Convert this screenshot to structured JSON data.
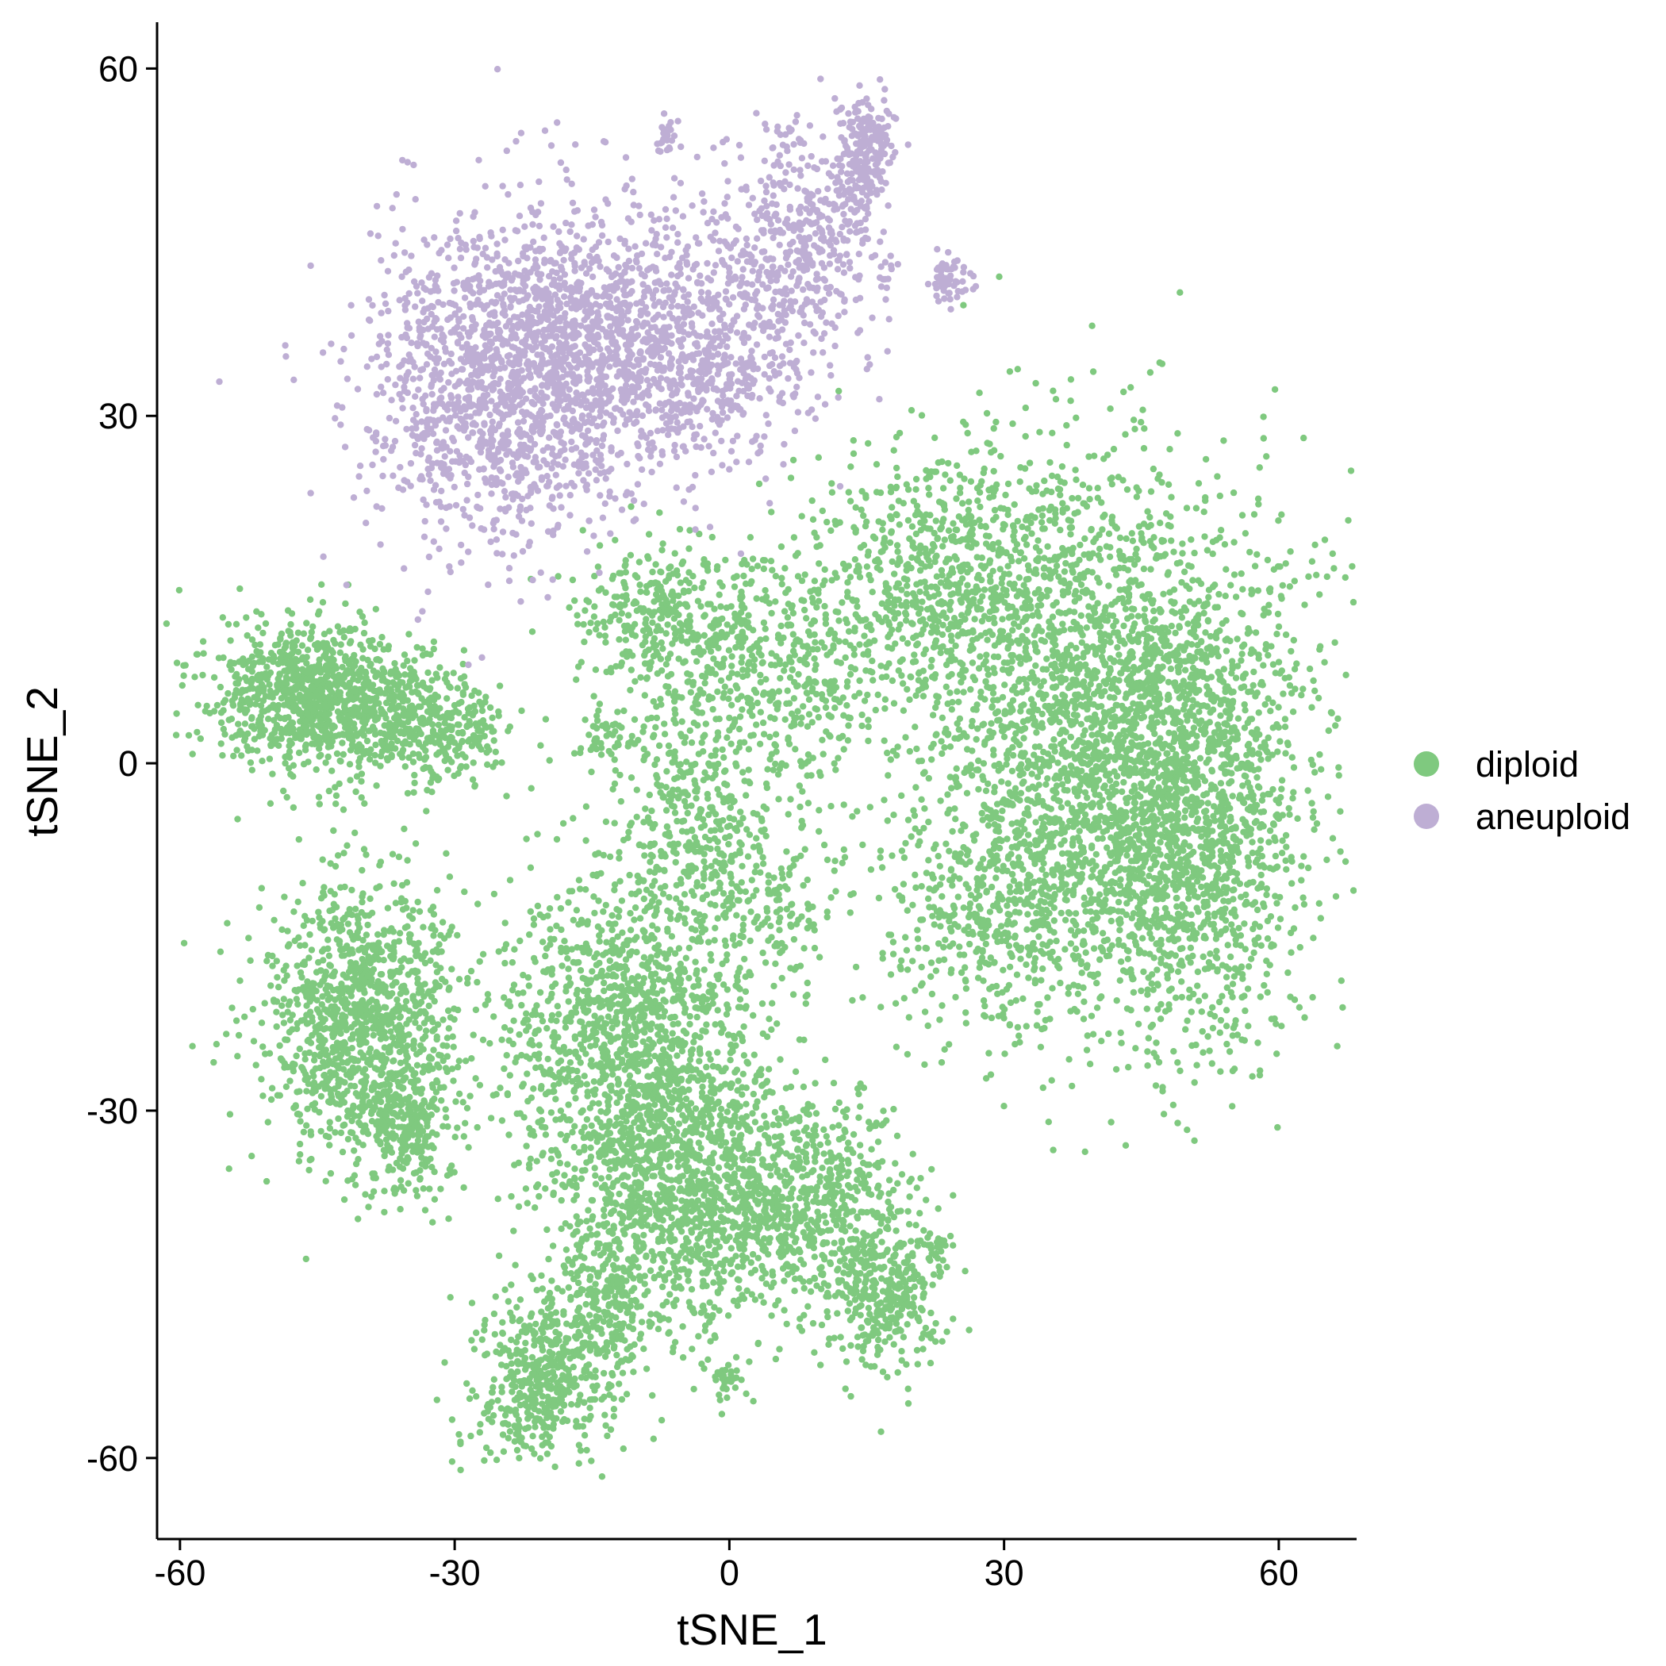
{
  "chart_data": {
    "type": "scatter",
    "title": "",
    "xlabel": "tSNE_1",
    "ylabel": "tSNE_2",
    "xlim": [
      -62.5,
      68.5
    ],
    "ylim": [
      -67,
      64
    ],
    "xticks": [
      -60,
      -30,
      0,
      30,
      60
    ],
    "yticks": [
      -60,
      -30,
      0,
      30,
      60
    ],
    "xtick_labels": [
      "-60",
      "-30",
      "0",
      "30",
      "60"
    ],
    "ytick_labels": [
      "-60",
      "-30",
      "0",
      "30",
      "60"
    ],
    "grid": false,
    "legend": {
      "position": "right",
      "entries": [
        {
          "label": "diploid",
          "color": "#7FC97F"
        },
        {
          "label": "aneuploid",
          "color": "#BEAED4"
        }
      ]
    },
    "series": [
      {
        "name": "diploid",
        "color": "#7FC97F",
        "clusters": [
          {
            "cx": 42,
            "cy": 2,
            "sx": 10.5,
            "sy": 11.5,
            "n": 2600
          },
          {
            "cx": 51,
            "cy": -6,
            "sx": 5.5,
            "sy": 9.5,
            "n": 900
          },
          {
            "cx": 24,
            "cy": 16,
            "sx": 8,
            "sy": 5.5,
            "n": 700
          },
          {
            "cx": 30,
            "cy": -12,
            "sx": 7,
            "sy": 6,
            "n": 500
          },
          {
            "cx": 6,
            "cy": 8,
            "sx": 6,
            "sy": 5,
            "n": 450
          },
          {
            "cx": -7,
            "cy": 12,
            "sx": 5,
            "sy": 3.5,
            "n": 350
          },
          {
            "cx": -3,
            "cy": -5,
            "sx": 4,
            "sy": 5,
            "n": 320
          },
          {
            "cx": 6,
            "cy": -12,
            "sx": 3,
            "sy": 4,
            "n": 120
          },
          {
            "cx": -13,
            "cy": 2,
            "sx": 2,
            "sy": 1.5,
            "n": 60
          },
          {
            "cx": -46,
            "cy": 6,
            "sx": 5,
            "sy": 3.3,
            "n": 900
          },
          {
            "cx": -35,
            "cy": 4,
            "sx": 4,
            "sy": 2.8,
            "n": 350
          },
          {
            "cx": -28,
            "cy": 2,
            "sx": 2,
            "sy": 2,
            "n": 80
          },
          {
            "cx": -40,
            "cy": -22,
            "sx": 5.2,
            "sy": 6,
            "n": 1200
          },
          {
            "cx": -35,
            "cy": -32,
            "sx": 2.5,
            "sy": 3,
            "n": 200
          },
          {
            "cx": -10,
            "cy": -24,
            "sx": 7,
            "sy": 8,
            "n": 1500
          },
          {
            "cx": -4,
            "cy": -38,
            "sx": 7,
            "sy": 5.5,
            "n": 1000
          },
          {
            "cx": 10,
            "cy": -38,
            "sx": 5,
            "sy": 4.5,
            "n": 500
          },
          {
            "cx": 17,
            "cy": -46,
            "sx": 3,
            "sy": 3,
            "n": 300
          },
          {
            "cx": -20,
            "cy": -53,
            "sx": 4,
            "sy": 3.5,
            "n": 500
          },
          {
            "cx": -13,
            "cy": -46,
            "sx": 3,
            "sy": 3,
            "n": 200
          },
          {
            "cx": 0,
            "cy": -53,
            "sx": 1,
            "sy": 1,
            "n": 30
          },
          {
            "cx": 23,
            "cy": -42,
            "sx": 0.8,
            "sy": 1,
            "n": 25
          }
        ]
      },
      {
        "name": "aneuploid",
        "color": "#BEAED4",
        "clusters": [
          {
            "cx": -25,
            "cy": 33,
            "sx": 7.5,
            "sy": 7,
            "n": 1400
          },
          {
            "cx": -14,
            "cy": 38,
            "sx": 6,
            "sy": 5.5,
            "n": 600
          },
          {
            "cx": -5,
            "cy": 34,
            "sx": 6,
            "sy": 5,
            "n": 500
          },
          {
            "cx": 5,
            "cy": 42,
            "sx": 5,
            "sy": 5,
            "n": 400
          },
          {
            "cx": 10,
            "cy": 47,
            "sx": 3,
            "sy": 3,
            "n": 150
          },
          {
            "cx": 15,
            "cy": 53,
            "sx": 1.6,
            "sy": 2.5,
            "n": 200
          },
          {
            "cx": 6,
            "cy": 54,
            "sx": 1.2,
            "sy": 1,
            "n": 25
          },
          {
            "cx": -7,
            "cy": 54,
            "sx": 0.6,
            "sy": 0.8,
            "n": 25
          },
          {
            "cx": 24,
            "cy": 42,
            "sx": 1.2,
            "sy": 1.2,
            "n": 60
          },
          {
            "cx": 17,
            "cy": 42,
            "sx": 0.6,
            "sy": 1.5,
            "n": 15
          }
        ]
      }
    ]
  }
}
